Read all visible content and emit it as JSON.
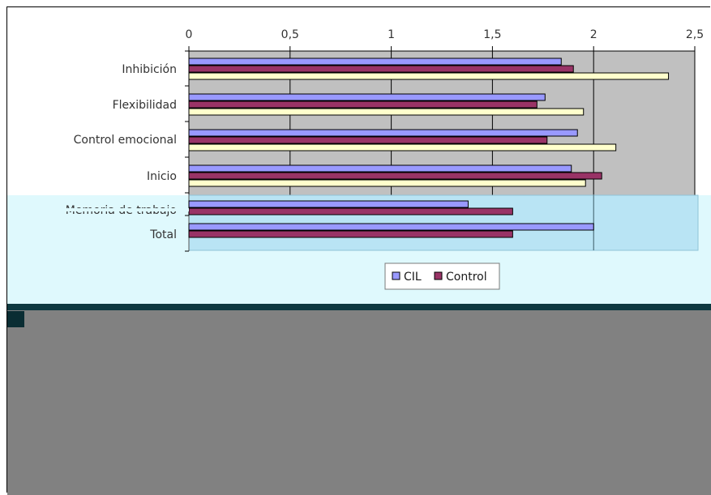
{
  "chart_data": {
    "type": "bar",
    "orientation": "horizontal",
    "xlim": [
      0,
      2.5
    ],
    "x_ticks": [
      "0",
      "0,5",
      "1",
      "1,5",
      "2",
      "2,5"
    ],
    "categories": [
      "Inhibición",
      "Flexibilidad",
      "Control emocional",
      "Inicio",
      "Memoria de trabajo",
      "Total"
    ],
    "series": [
      {
        "name": "CIL",
        "values": [
          1.84,
          1.76,
          1.92,
          1.89,
          1.38,
          2.0
        ]
      },
      {
        "name": "Control",
        "values": [
          1.9,
          1.72,
          1.77,
          2.04,
          1.6,
          1.6
        ]
      },
      {
        "name": "",
        "values": [
          2.37,
          1.95,
          2.11,
          1.96,
          null,
          null
        ]
      }
    ],
    "legend": {
      "position": "bottom",
      "items": [
        "CIL",
        "Control"
      ]
    },
    "grid": true,
    "colors": {
      "plot_background": "#c0c0c0",
      "overlay_background": "#dff9fd",
      "overlay_plot": "#b9e4f4",
      "series": [
        "#9999ff",
        "#993366",
        "#ffffcc"
      ]
    }
  },
  "colors": {
    "lower_panel": "#818181",
    "dark_strip": "#0e3940"
  }
}
